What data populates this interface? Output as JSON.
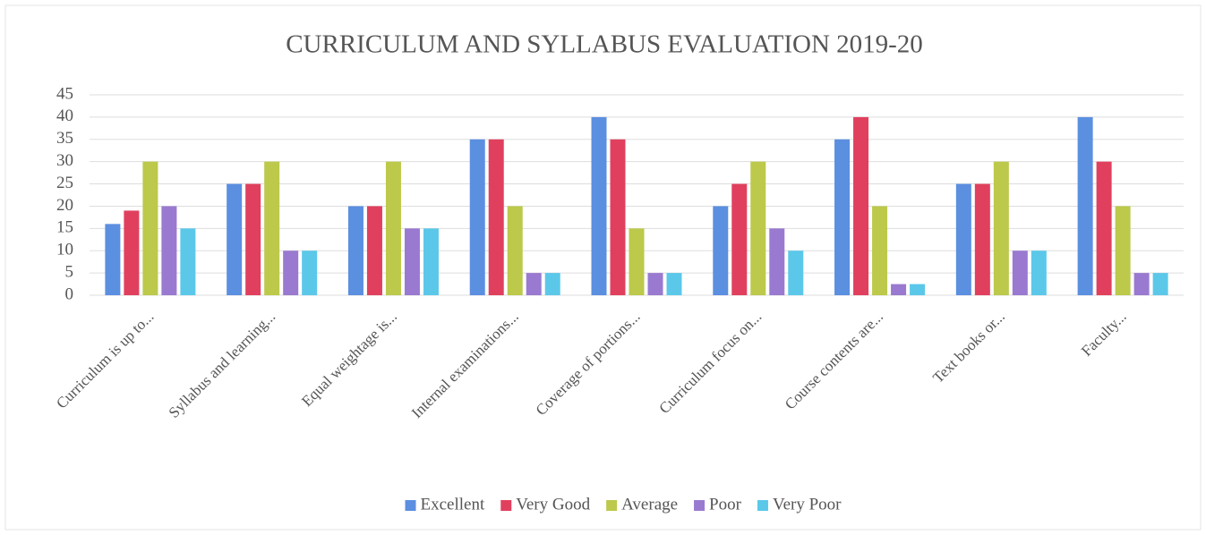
{
  "chart_data": {
    "type": "bar",
    "title": "CURRICULUM AND SYLLABUS EVALUATION 2019-20",
    "categories": [
      "Curriculum is up to...",
      "Syllabus and learning...",
      "Equal weightage is...",
      "Internal examinations...",
      "Coverage of portions...",
      "Curriculum focus on...",
      "Course contents are...",
      "Text books or...",
      "Faculty..."
    ],
    "series": [
      {
        "name": "Excellent",
        "color": "#5b8fe0",
        "values": [
          16,
          25,
          20,
          35,
          40,
          20,
          35,
          25,
          40
        ]
      },
      {
        "name": "Very Good",
        "color": "#e0405e",
        "values": [
          19,
          25,
          20,
          35,
          35,
          25,
          40,
          25,
          30
        ]
      },
      {
        "name": "Average",
        "color": "#bcc94a",
        "values": [
          30,
          30,
          30,
          20,
          15,
          30,
          20,
          30,
          20
        ]
      },
      {
        "name": "Poor",
        "color": "#9a7ad0",
        "values": [
          20,
          10,
          15,
          5,
          5,
          15,
          2.5,
          10,
          5
        ]
      },
      {
        "name": "Very Poor",
        "color": "#5bc8ea",
        "values": [
          15,
          10,
          15,
          5,
          5,
          10,
          2.5,
          10,
          5
        ]
      }
    ],
    "ylim": [
      0,
      45
    ],
    "yticks": [
      0,
      5,
      10,
      15,
      20,
      25,
      30,
      35,
      40,
      45
    ],
    "grid": true,
    "legend": "bottom"
  }
}
